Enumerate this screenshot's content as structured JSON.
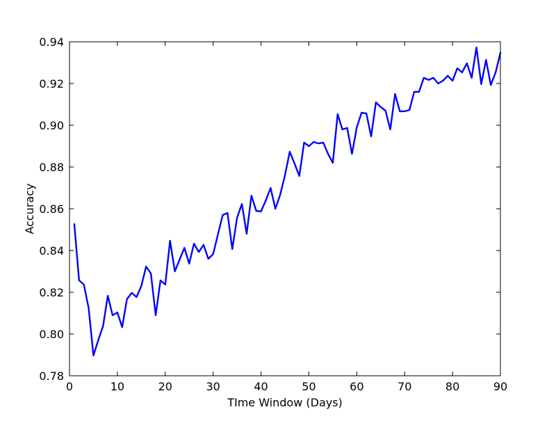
{
  "chart_data": {
    "type": "line",
    "title": "",
    "xlabel": "TIme Window (Days)",
    "ylabel": "Accuracy",
    "xlim": [
      0,
      90
    ],
    "ylim": [
      0.78,
      0.94
    ],
    "xticks": [
      0,
      10,
      20,
      30,
      40,
      50,
      60,
      70,
      80,
      90
    ],
    "yticks": [
      0.78,
      0.8,
      0.82,
      0.84,
      0.86,
      0.88,
      0.9,
      0.92,
      0.94
    ],
    "xtick_labels": [
      "0",
      "10",
      "20",
      "30",
      "40",
      "50",
      "60",
      "70",
      "80",
      "90"
    ],
    "ytick_labels": [
      "0.78",
      "0.80",
      "0.82",
      "0.84",
      "0.86",
      "0.88",
      "0.90",
      "0.92",
      "0.94"
    ],
    "grid": false,
    "legend": false,
    "line_color": "#0000ff",
    "series": [
      {
        "x": [
          1,
          2,
          3,
          4,
          5,
          6,
          7,
          8,
          9,
          10,
          11,
          12,
          13,
          14,
          15,
          16,
          17,
          18,
          19,
          20,
          21,
          22,
          23,
          24,
          25,
          26,
          27,
          28,
          29,
          30,
          31,
          32,
          33,
          34,
          35,
          36,
          37,
          38,
          39,
          40,
          41,
          42,
          43,
          44,
          45,
          46,
          47,
          48,
          49,
          50,
          51,
          52,
          53,
          54,
          55,
          56,
          57,
          58,
          59,
          60,
          61,
          62,
          63,
          64,
          65,
          66,
          67,
          68,
          69,
          70,
          71,
          72,
          73,
          74,
          75,
          76,
          77,
          78,
          79,
          80,
          81,
          82,
          83,
          84,
          85,
          86,
          87,
          88,
          89,
          90
        ],
        "y": [
          0.8527,
          0.8257,
          0.8237,
          0.8124,
          0.7897,
          0.797,
          0.8037,
          0.8183,
          0.809,
          0.8103,
          0.8033,
          0.8167,
          0.8197,
          0.8177,
          0.823,
          0.8323,
          0.829,
          0.809,
          0.8257,
          0.8237,
          0.8447,
          0.83,
          0.8357,
          0.8413,
          0.8337,
          0.8433,
          0.8393,
          0.8427,
          0.836,
          0.8383,
          0.8477,
          0.857,
          0.858,
          0.8407,
          0.8557,
          0.8623,
          0.848,
          0.8663,
          0.859,
          0.8587,
          0.864,
          0.87,
          0.86,
          0.8667,
          0.876,
          0.8873,
          0.8817,
          0.8757,
          0.8917,
          0.89,
          0.892,
          0.8913,
          0.8917,
          0.8863,
          0.882,
          0.9053,
          0.898,
          0.8987,
          0.8863,
          0.899,
          0.906,
          0.9057,
          0.8947,
          0.911,
          0.9087,
          0.907,
          0.898,
          0.915,
          0.9067,
          0.9067,
          0.9073,
          0.916,
          0.916,
          0.9227,
          0.9217,
          0.9227,
          0.92,
          0.9213,
          0.9237,
          0.9213,
          0.9273,
          0.9253,
          0.9297,
          0.9227,
          0.9373,
          0.9197,
          0.9313,
          0.9193,
          0.9253,
          0.9347
        ]
      }
    ]
  }
}
